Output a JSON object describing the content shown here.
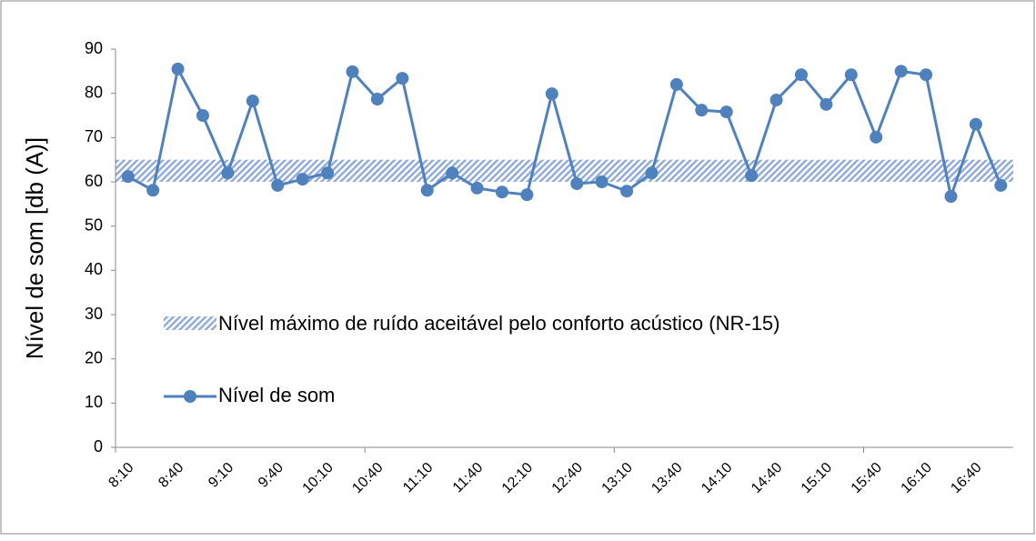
{
  "chart_data": {
    "type": "line",
    "ylabel": "Nível de som [db (A)]",
    "categories": [
      "8:10",
      null,
      "8:40",
      null,
      "9:10",
      null,
      "9:40",
      null,
      "10:10",
      null,
      "10:40",
      null,
      "11:10",
      null,
      "11:40",
      null,
      "12:10",
      null,
      "12:40",
      null,
      "13:10",
      null,
      "13:40",
      null,
      "14:10",
      null,
      "14:40",
      null,
      "15:10",
      null,
      "15:40",
      null,
      "16:10",
      null,
      "16:40",
      null
    ],
    "series": [
      {
        "name": "Nível de som",
        "color": "#4f81bd",
        "values": [
          61.2,
          58.1,
          85.5,
          75,
          62,
          78.3,
          59.2,
          60.6,
          62,
          84.9,
          78.7,
          83.4,
          58.1,
          62,
          58.6,
          57.7,
          57.1,
          79.9,
          59.6,
          60,
          57.9,
          62,
          82,
          76.2,
          75.8,
          61.4,
          78.5,
          84.2,
          77.5,
          84.2,
          70.1,
          85,
          84.2,
          56.7,
          73,
          59.2
        ]
      }
    ],
    "band": {
      "name": "Nível máximo de ruído aceitável pelo conforto acústico (NR-15)",
      "color": "#8eaadb",
      "range": [
        60,
        65
      ]
    },
    "ylim": [
      0,
      90
    ],
    "yticks": [
      0,
      10,
      20,
      30,
      40,
      50,
      60,
      70,
      80,
      90
    ],
    "legend": "left"
  }
}
